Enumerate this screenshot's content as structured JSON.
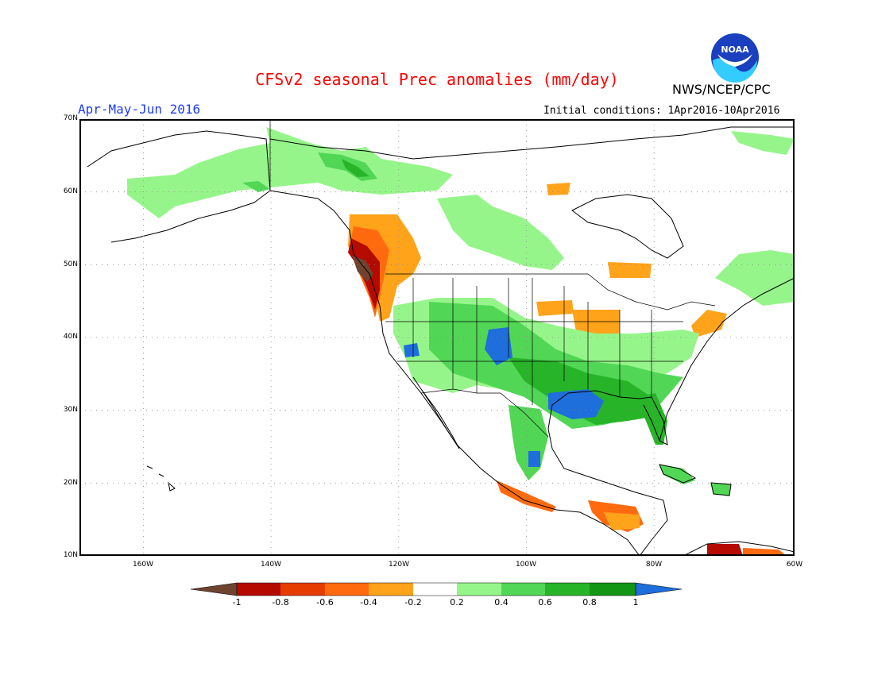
{
  "header": {
    "title": "CFSv2 seasonal Prec anomalies (mm/day)",
    "period": "Apr-May-Jun 2016",
    "init": "Initial conditions: 1Apr2016-10Apr2016",
    "agency": "NWS/NCEP/CPC",
    "logo_text": "NOAA"
  },
  "map": {
    "projection": "lat-lon",
    "lon_range": [
      -172,
      -60
    ],
    "lat_range": [
      10,
      70
    ],
    "lat_ticks": [
      "70N",
      "60N",
      "50N",
      "40N",
      "30N",
      "20N",
      "10N"
    ],
    "lon_ticks": [
      "160W",
      "140W",
      "120W",
      "100W",
      "80W",
      "60W"
    ],
    "grid": "dotted"
  },
  "legend": {
    "ticks": [
      "-1",
      "-0.8",
      "-0.6",
      "-0.4",
      "-0.2",
      "0.2",
      "0.4",
      "0.6",
      "0.8",
      "1"
    ],
    "colors": [
      "#6e4330",
      "#b40a00",
      "#e63c00",
      "#ff6a0f",
      "#ffa31a",
      "#ffffff",
      "#96f58a",
      "#52d656",
      "#28b428",
      "#129614",
      "#1e6edc"
    ]
  },
  "anomaly_regions": [
    {
      "region": "Pacific Northwest coast",
      "lon": -123,
      "lat": 49,
      "category": "-1"
    },
    {
      "region": "British Columbia",
      "lon": -123,
      "lat": 52,
      "category": "-0.4"
    },
    {
      "region": "Oregon-Washington coast",
      "lon": -124,
      "lat": 45,
      "category": "-0.8"
    },
    {
      "region": "Texas-Louisiana Gulf coast",
      "lon": -93,
      "lat": 31,
      "category": "1"
    },
    {
      "region": "Colorado-New Mexico",
      "lon": -105,
      "lat": 38,
      "category": "1"
    },
    {
      "region": "Southeast US",
      "lon": -88,
      "lat": 33,
      "category": "0.6"
    },
    {
      "region": "Great Lakes",
      "lon": -88,
      "lat": 42,
      "category": "-0.4"
    },
    {
      "region": "Central Plains",
      "lon": -99,
      "lat": 44,
      "category": "-0.4"
    },
    {
      "region": "Southern Mexico",
      "lon": -98,
      "lat": 17,
      "category": "-0.6"
    },
    {
      "region": "Central America",
      "lon": -88,
      "lat": 15,
      "category": "-0.6"
    },
    {
      "region": "Alaska interior",
      "lon": -130,
      "lat": 65,
      "category": "0.6"
    },
    {
      "region": "Western Canada",
      "lon": -112,
      "lat": 56,
      "category": "0.2"
    },
    {
      "region": "Hudson Bay",
      "lon": -95,
      "lat": 61,
      "category": "-0.4"
    },
    {
      "region": "Labrador",
      "lon": -70,
      "lat": 53,
      "category": "0.2"
    },
    {
      "region": "Mid-Atlantic coast",
      "lon": -75,
      "lat": 41,
      "category": "-0.4"
    },
    {
      "region": "Florida",
      "lon": -81,
      "lat": 28,
      "category": "0.8"
    },
    {
      "region": "Cuba",
      "lon": -78,
      "lat": 22,
      "category": "0.6"
    },
    {
      "region": "Hispaniola",
      "lon": -71,
      "lat": 19,
      "category": "0.6"
    },
    {
      "region": "Venezuela coast",
      "lon": -70,
      "lat": 11,
      "category": "-0.8"
    }
  ]
}
